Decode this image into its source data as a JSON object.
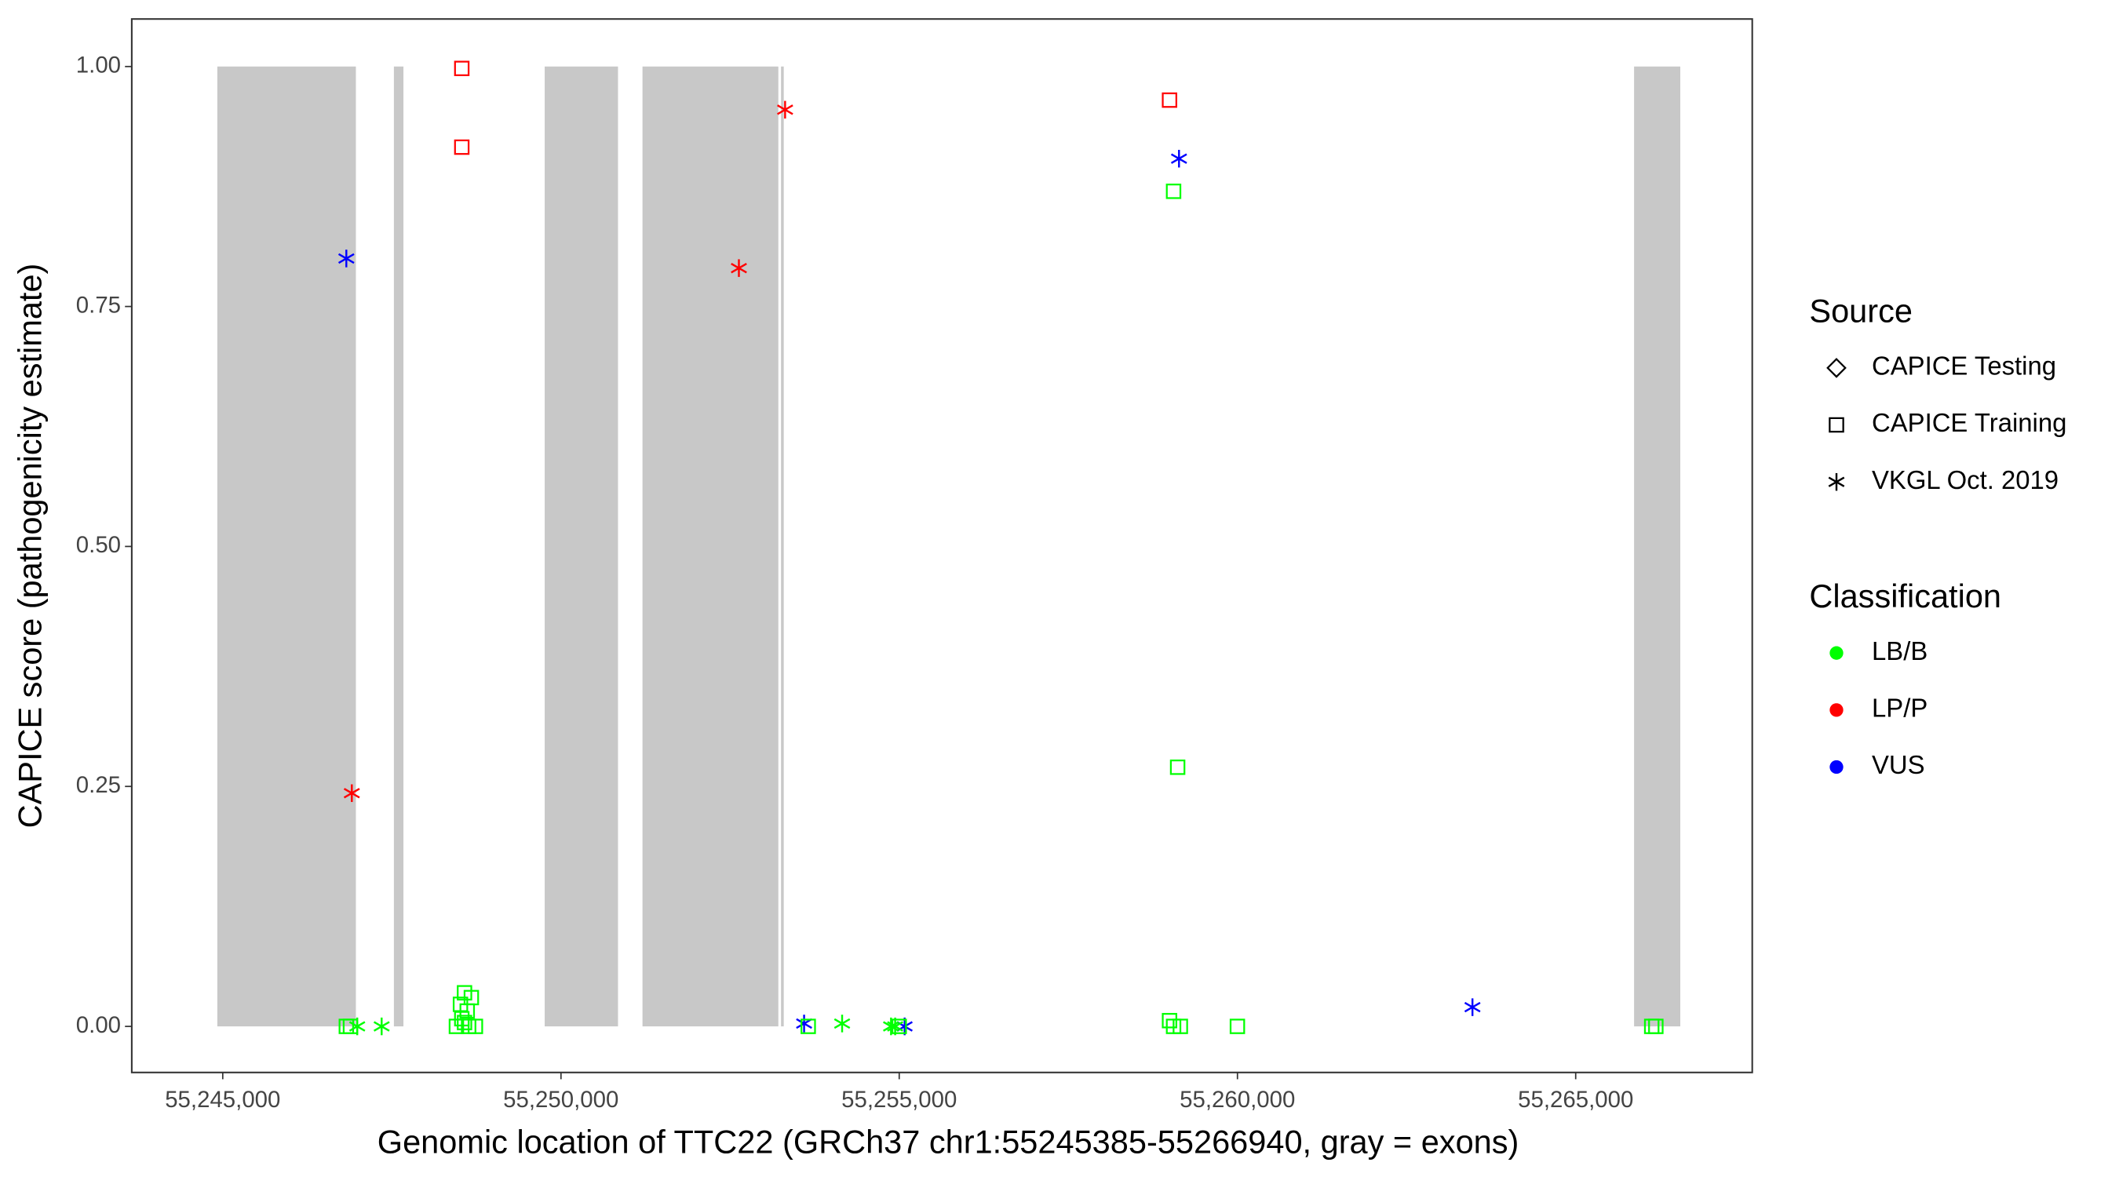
{
  "chart_data": {
    "type": "scatter",
    "x_label": "Genomic location of TTC22 (GRCh37 chr1:55245385-55266940, gray = exons)",
    "y_label": "CAPICE score (pathogenicity estimate)",
    "xlim": [
      55243655,
      55267610
    ],
    "ylim": [
      -0.048,
      1.0495
    ],
    "xticks": [
      {
        "value": 55245000,
        "label": "55,245,000"
      },
      {
        "value": 55250000,
        "label": "55,250,000"
      },
      {
        "value": 55255000,
        "label": "55,255,000"
      },
      {
        "value": 55260000,
        "label": "55,260,000"
      },
      {
        "value": 55265000,
        "label": "55,265,000"
      }
    ],
    "yticks": [
      {
        "value": 0,
        "label": "0.00"
      },
      {
        "value": 0.25,
        "label": "0.25"
      },
      {
        "value": 0.5,
        "label": "0.50"
      },
      {
        "value": 0.75,
        "label": "0.75"
      },
      {
        "value": 1,
        "label": "1.00"
      }
    ],
    "exon_color": "#c8c8c8",
    "exon_yrange": [
      0,
      1
    ],
    "exons": [
      [
        55244920,
        55246968
      ],
      [
        55247530,
        55247671
      ],
      [
        55249759,
        55250843
      ],
      [
        55251205,
        55253213
      ],
      [
        55253253,
        55253293
      ],
      [
        55265863,
        55266546
      ]
    ],
    "source_title": "Source",
    "sources": [
      {
        "name": "CAPICE Testing",
        "shape": "diamond"
      },
      {
        "name": "CAPICE Training",
        "shape": "square"
      },
      {
        "name": "VKGL Oct. 2019",
        "shape": "asterisk"
      }
    ],
    "classification_title": "Classification",
    "classifications": [
      {
        "name": "LB/B",
        "color": "#00ff00"
      },
      {
        "name": "LP/P",
        "color": "#ff0000"
      },
      {
        "name": "VUS",
        "color": "#0000ff"
      }
    ],
    "series": [
      {
        "source": 2,
        "class": 2,
        "x": [
          55246827,
          55259136,
          55253594,
          55255080,
          55263474
        ],
        "y": [
          0.8,
          0.904,
          0.003,
          0.0,
          0.02
        ]
      },
      {
        "source": 2,
        "class": 1,
        "x": [
          55246908,
          55252630,
          55253313
        ],
        "y": [
          0.243,
          0.79,
          0.955
        ]
      },
      {
        "source": 2,
        "class": 0,
        "x": [
          55254156,
          55254879,
          55254940,
          55246988,
          55247349
        ],
        "y": [
          0.003,
          0.0,
          0.0,
          0.0,
          0.0
        ]
      },
      {
        "source": 1,
        "class": 1,
        "x": [
          55248534,
          55248534,
          55258996
        ],
        "y": [
          0.998,
          0.916,
          0.965
        ]
      },
      {
        "source": 1,
        "class": 0,
        "x": [
          55259056,
          55259116,
          55248574,
          55248675,
          55248514,
          55248614,
          55248534,
          55248454,
          55248635,
          55248735,
          55248574,
          55246827,
          55246888,
          55258996,
          55259056,
          55259156,
          55259999,
          55253655,
          55255000,
          55266124,
          55266185
        ],
        "y": [
          0.87,
          0.27,
          0.035,
          0.03,
          0.023,
          0.016,
          0.008,
          0.0,
          0.0,
          0.0,
          0.004,
          0.0,
          0.0,
          0.006,
          0.0,
          0.0,
          0.0,
          0.0,
          0.0,
          0.0,
          0.0
        ]
      }
    ]
  }
}
